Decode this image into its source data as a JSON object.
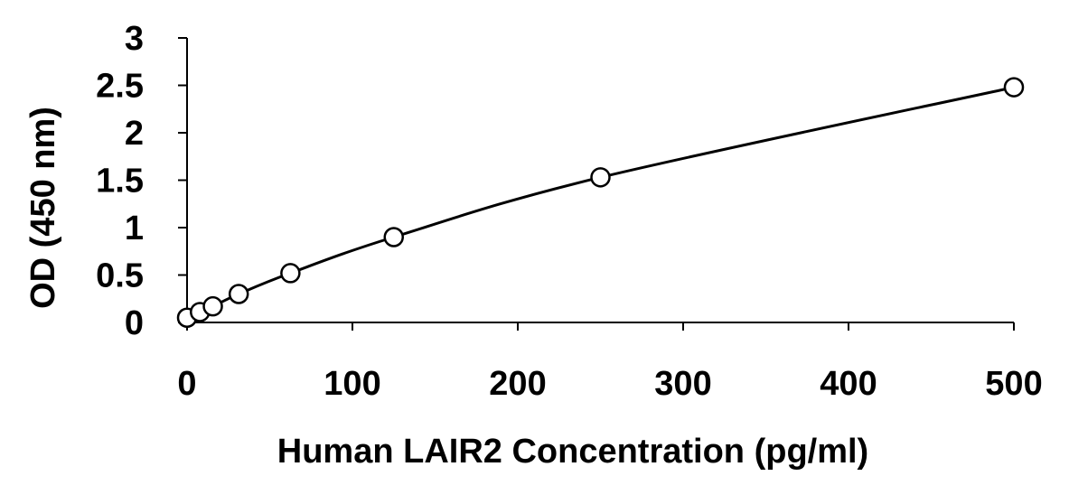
{
  "chart_data": {
    "type": "scatter",
    "title": "",
    "xlabel": "Human LAIR2 Concentration (pg/ml)",
    "ylabel": "OD (450 nm)",
    "xlim": [
      0,
      500
    ],
    "ylim": [
      0,
      3
    ],
    "xticks": [
      "0",
      "100",
      "200",
      "300",
      "400",
      "500"
    ],
    "yticks": [
      "0",
      "0.5",
      "1",
      "1.5",
      "2",
      "2.5",
      "3"
    ],
    "grid": false,
    "legend": "none",
    "series": [
      {
        "marker": "open-circle",
        "fit_line": true,
        "x": [
          0,
          7.8,
          15.6,
          31.25,
          62.5,
          125,
          250,
          500
        ],
        "y": [
          0.05,
          0.11,
          0.17,
          0.3,
          0.52,
          0.9,
          1.53,
          2.48
        ]
      }
    ]
  }
}
